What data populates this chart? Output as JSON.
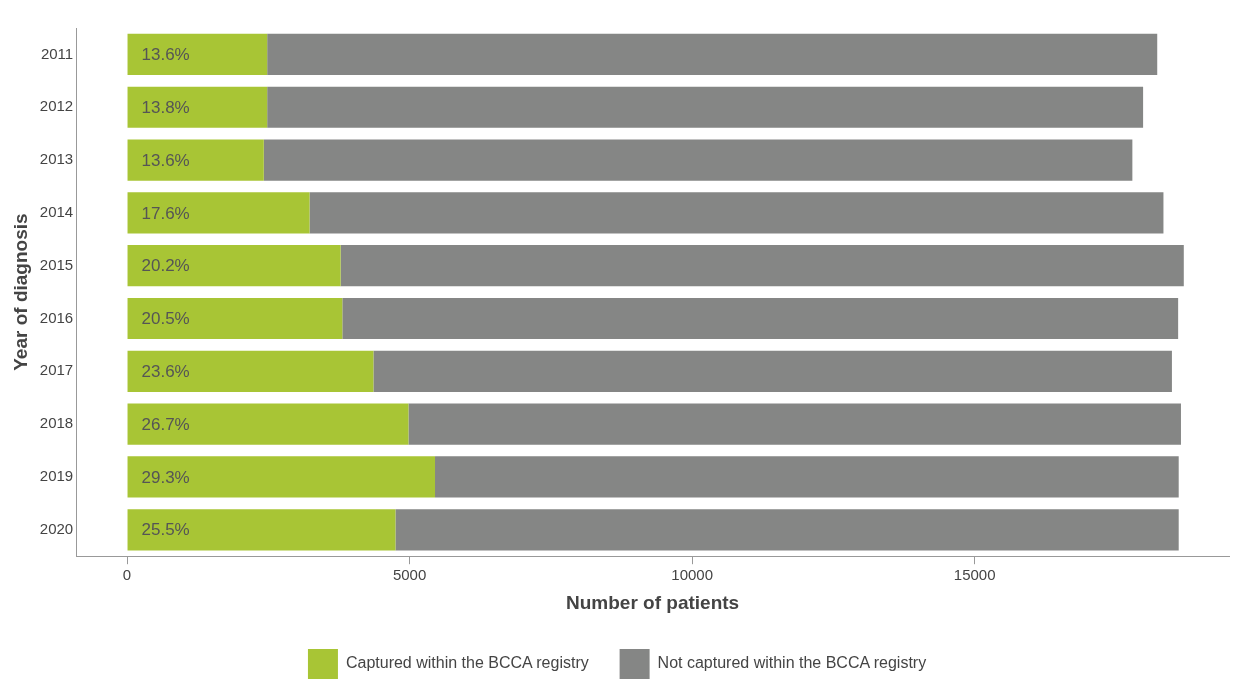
{
  "chart_data": {
    "type": "bar",
    "orientation": "horizontal",
    "stacked": true,
    "categories": [
      "2011",
      "2012",
      "2013",
      "2014",
      "2015",
      "2016",
      "2017",
      "2018",
      "2019",
      "2020"
    ],
    "series": [
      {
        "name": "Captured within the BCCA registry",
        "color": "#a8c535",
        "values": [
          2480,
          2480,
          2420,
          3230,
          3780,
          3810,
          4360,
          4980,
          5450,
          4750
        ]
      },
      {
        "name": "Not captured within the BCCA registry",
        "color": "#858685",
        "values": [
          15750,
          15500,
          15370,
          15110,
          14920,
          14790,
          14130,
          13670,
          13160,
          13860
        ]
      }
    ],
    "xlabel": "Number of patients",
    "ylabel": "Year of diagnosis",
    "xlim": [
      -900,
      19500
    ],
    "xticks": [
      0,
      5000,
      10000,
      15000
    ],
    "annotations": [
      {
        "text": "13.6%",
        "y": "2011"
      },
      {
        "text": "13.8%",
        "y": "2012"
      },
      {
        "text": "13.6%",
        "y": "2013"
      },
      {
        "text": "17.6%",
        "y": "2014"
      },
      {
        "text": "20.2%",
        "y": "2015"
      },
      {
        "text": "20.5%",
        "y": "2016"
      },
      {
        "text": "23.6%",
        "y": "2017"
      },
      {
        "text": "26.7%",
        "y": "2018"
      },
      {
        "text": "29.3%",
        "y": "2019"
      },
      {
        "text": "25.5%",
        "y": "2020"
      }
    ],
    "grid": false,
    "legend": "bottom"
  }
}
